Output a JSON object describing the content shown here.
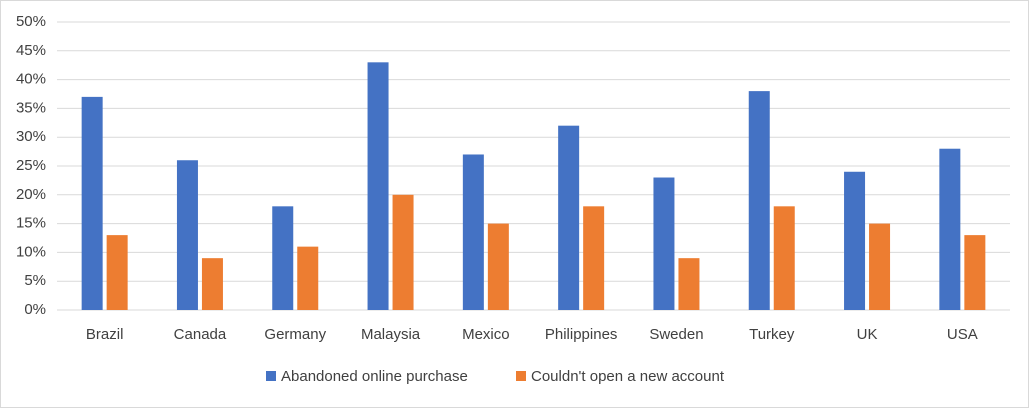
{
  "chart_data": {
    "type": "bar",
    "categories": [
      "Brazil",
      "Canada",
      "Germany",
      "Malaysia",
      "Mexico",
      "Philippines",
      "Sweden",
      "Turkey",
      "UK",
      "USA"
    ],
    "series": [
      {
        "name": "Abandoned online purchase",
        "color": "#4472c4",
        "values": [
          37,
          26,
          18,
          43,
          27,
          32,
          23,
          38,
          24,
          28
        ]
      },
      {
        "name": "Couldn't open a new account",
        "color": "#ed7d31",
        "values": [
          13,
          9,
          11,
          20,
          15,
          18,
          9,
          18,
          15,
          13
        ]
      }
    ],
    "ylim": [
      0,
      50
    ],
    "yticks": [
      {
        "value": 0,
        "label": "0%"
      },
      {
        "value": 5,
        "label": "5%"
      },
      {
        "value": 10,
        "label": "10%"
      },
      {
        "value": 15,
        "label": "15%"
      },
      {
        "value": 20,
        "label": "20%"
      },
      {
        "value": 25,
        "label": "25%"
      },
      {
        "value": 30,
        "label": "30%"
      },
      {
        "value": 35,
        "label": "35%"
      },
      {
        "value": 40,
        "label": "40%"
      },
      {
        "value": 45,
        "label": "45%"
      },
      {
        "value": 50,
        "label": "50%"
      }
    ],
    "grid": true,
    "legend": "bottom"
  }
}
